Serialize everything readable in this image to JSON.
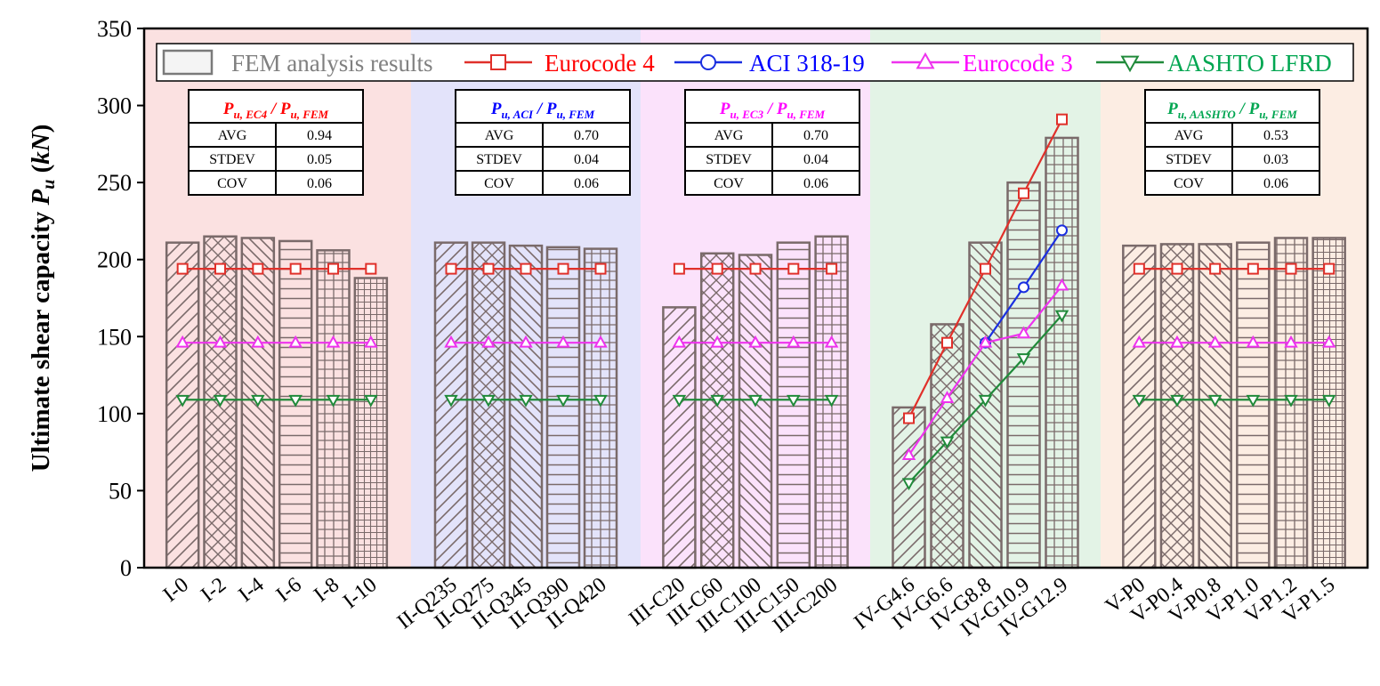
{
  "chart_data": {
    "type": "bar",
    "ylabel_main": "Ultimate shear capacity ",
    "ylabel_sym": "P",
    "ylabel_sub": "u",
    "ylabel_unit_open": " (",
    "ylabel_unit": "kN",
    "ylabel_unit_close": ")",
    "ylim": [
      0,
      350
    ],
    "yticks": [
      0,
      50,
      100,
      150,
      200,
      250,
      300,
      350
    ],
    "grid": false,
    "legend_position": "top",
    "groups": [
      {
        "background": "#fbe1e1",
        "categories": [
          "I-0",
          "I-2",
          "I-4",
          "I-6",
          "I-8",
          "I-10"
        ],
        "fem": [
          211,
          215,
          214,
          212,
          206,
          188
        ],
        "ec4": [
          194,
          194,
          194,
          194,
          194,
          194
        ],
        "aci": [
          null,
          null,
          null,
          null,
          null,
          null
        ],
        "ec3": [
          146,
          146,
          146,
          146,
          146,
          146
        ],
        "aashto": [
          109,
          109,
          109,
          109,
          109,
          109
        ],
        "table": {
          "title_main": "P",
          "title_sub1": "u, EC4",
          "title_slash": " / P",
          "title_sub2": "u, FEM",
          "color": "#ff0000",
          "rows": [
            [
              "AVG",
              "0.94"
            ],
            [
              "STDEV",
              "0.05"
            ],
            [
              "COV",
              "0.06"
            ]
          ]
        }
      },
      {
        "background": "#e3e3fa",
        "categories": [
          "II-Q235",
          "II-Q275",
          "II-Q345",
          "II-Q390",
          "II-Q420"
        ],
        "fem": [
          211,
          211,
          209,
          208,
          207
        ],
        "ec4": [
          194,
          194,
          194,
          194,
          194
        ],
        "aci": [
          null,
          null,
          null,
          null,
          null
        ],
        "ec3": [
          146,
          146,
          146,
          146,
          146
        ],
        "aashto": [
          109,
          109,
          109,
          109,
          109
        ],
        "table": {
          "title_main": "P",
          "title_sub1": "u, ACI",
          "title_slash": " / P",
          "title_sub2": "u, FEM",
          "color": "#0000ff",
          "rows": [
            [
              "AVG",
              "0.70"
            ],
            [
              "STDEV",
              "0.04"
            ],
            [
              "COV",
              "0.06"
            ]
          ]
        }
      },
      {
        "background": "#fbe2fb",
        "categories": [
          "III-C20",
          "III-C60",
          "III-C100",
          "III-C150",
          "III-C200"
        ],
        "fem": [
          169,
          204,
          203,
          211,
          215
        ],
        "ec4": [
          194,
          194,
          194,
          194,
          194
        ],
        "aci": [
          null,
          null,
          null,
          null,
          null
        ],
        "ec3": [
          146,
          146,
          146,
          146,
          146
        ],
        "aashto": [
          109,
          109,
          109,
          109,
          109
        ],
        "table": {
          "title_main": "P",
          "title_sub1": "u, EC3",
          "title_slash": " / P",
          "title_sub2": "u, FEM",
          "color": "#ff00ff",
          "rows": [
            [
              "AVG",
              "0.70"
            ],
            [
              "STDEV",
              "0.04"
            ],
            [
              "COV",
              "0.06"
            ]
          ]
        }
      },
      {
        "background": "#e3f3e6",
        "categories": [
          "IV-G4.6",
          "IV-G6.6",
          "IV-G8.8",
          "IV-G10.9",
          "IV-G12.9"
        ],
        "fem": [
          104,
          158,
          211,
          250,
          279
        ],
        "ec4": [
          97,
          146,
          194,
          243,
          291
        ],
        "aci": [
          null,
          null,
          146,
          182,
          219
        ],
        "ec3": [
          73,
          110,
          146,
          152,
          183
        ],
        "aashto": [
          55,
          82,
          109,
          136,
          164
        ],
        "table": null
      },
      {
        "background": "#fcede3",
        "categories": [
          "V-P0",
          "V-P0.4",
          "V-P0.8",
          "V-P1.0",
          "V-P1.2",
          "V-P1.5"
        ],
        "fem": [
          209,
          210,
          210,
          211,
          214,
          214
        ],
        "ec4": [
          194,
          194,
          194,
          194,
          194,
          194
        ],
        "aci": [
          null,
          null,
          null,
          null,
          null,
          null
        ],
        "ec3": [
          146,
          146,
          146,
          146,
          146,
          146
        ],
        "aashto": [
          109,
          109,
          109,
          109,
          109,
          109
        ],
        "table": {
          "title_main": "P",
          "title_sub1": "u, AASHTO",
          "title_slash": " / P",
          "title_sub2": "u, FEM",
          "color": "#00a651",
          "rows": [
            [
              "AVG",
              "0.53"
            ],
            [
              "STDEV",
              "0.03"
            ],
            [
              "COV",
              "0.06"
            ]
          ]
        }
      }
    ],
    "series": [
      {
        "key": "fem",
        "name": "FEM analysis results",
        "color": "#7a7a7a",
        "marker": "bar"
      },
      {
        "key": "ec4",
        "name": "Eurocode 4",
        "color": "#e0302a",
        "marker": "square"
      },
      {
        "key": "aci",
        "name": "ACI 318-19",
        "color": "#1a2fe0",
        "marker": "circle"
      },
      {
        "key": "ec3",
        "name": "Eurocode 3",
        "color": "#ee33ee",
        "marker": "triangle-up"
      },
      {
        "key": "aashto",
        "name": "AASHTO LFRD",
        "color": "#208a3a",
        "marker": "triangle-down"
      }
    ],
    "legend_text_colors": [
      "#808080",
      "#ff0000",
      "#0000ff",
      "#ff00ff",
      "#00a651"
    ]
  }
}
